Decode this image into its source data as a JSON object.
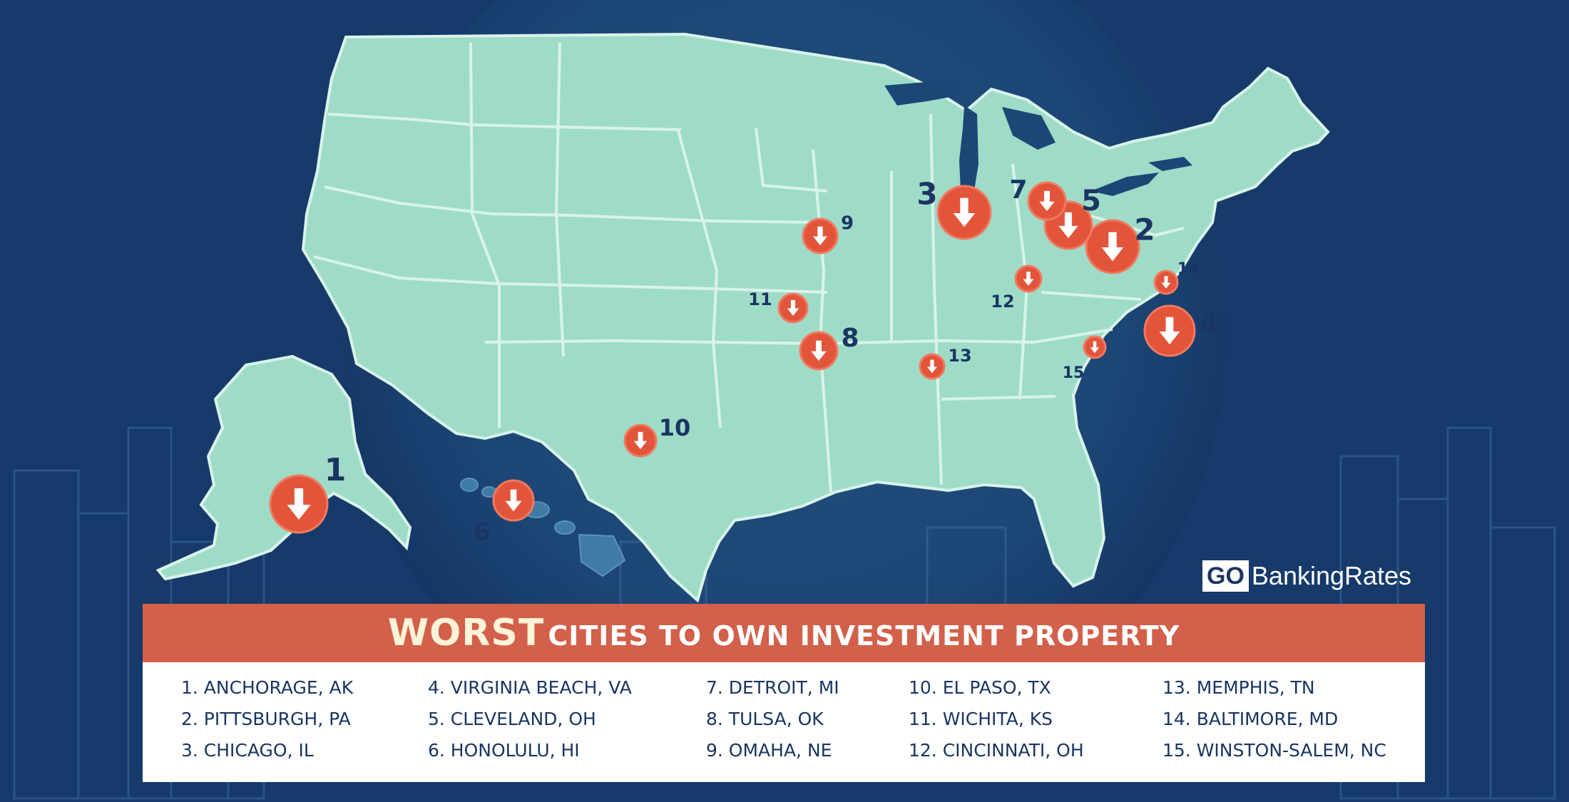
{
  "title": {
    "strong": "WORST",
    "rest": "CITIES TO OWN INVESTMENT PROPERTY"
  },
  "brand": {
    "go": "GO",
    "rest": "BankingRates"
  },
  "cities": [
    {
      "rank": "1",
      "label": "1. ANCHORAGE, AK"
    },
    {
      "rank": "2",
      "label": "2. PITTSBURGH, PA"
    },
    {
      "rank": "3",
      "label": "3. CHICAGO, IL"
    },
    {
      "rank": "4",
      "label": "4. VIRGINIA BEACH, VA"
    },
    {
      "rank": "5",
      "label": "5. CLEVELAND, OH"
    },
    {
      "rank": "6",
      "label": "6. HONOLULU, HI"
    },
    {
      "rank": "7",
      "label": "7. DETROIT, MI"
    },
    {
      "rank": "8",
      "label": "8. TULSA, OK"
    },
    {
      "rank": "9",
      "label": "9. OMAHA, NE"
    },
    {
      "rank": "10",
      "label": "10. EL PASO, TX"
    },
    {
      "rank": "11",
      "label": "11. WICHITA, KS"
    },
    {
      "rank": "12",
      "label": "12. CINCINNATI, OH"
    },
    {
      "rank": "13",
      "label": "13. MEMPHIS, TN"
    },
    {
      "rank": "14",
      "label": "14. BALTIMORE, MD"
    },
    {
      "rank": "15",
      "label": "15. WINSTON-SALEM, NC"
    }
  ],
  "colors": {
    "background": "#163a6a",
    "land": "#9fdcc8",
    "borders": "#d9f3ea",
    "marker": "#e2553b",
    "banner": "#d2604a",
    "text_dark": "#1a3562"
  }
}
